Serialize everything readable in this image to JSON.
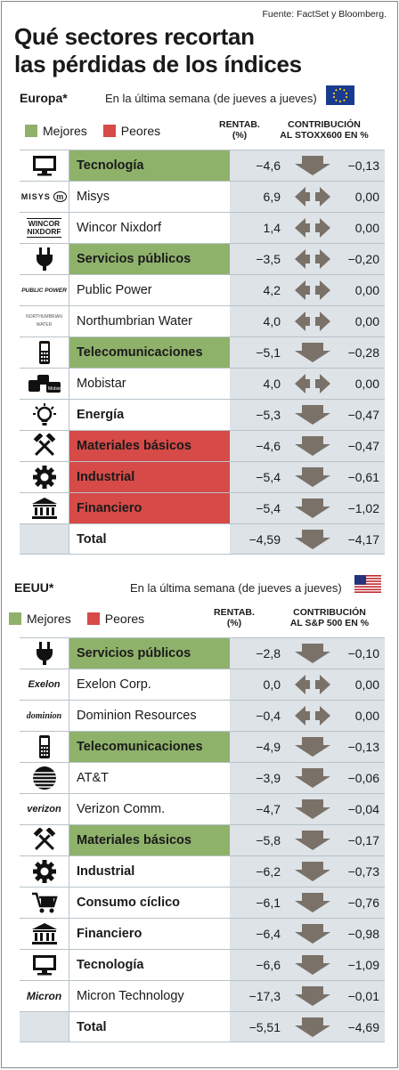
{
  "source": "Fuente: FactSet y Bloomberg.",
  "title_line1": "Qué sectores recortan",
  "title_line2": "las pérdidas de los índices",
  "legend": {
    "better": "Mejores",
    "worse": "Peores"
  },
  "colors": {
    "better": "#8fb26b",
    "worse": "#d64a47",
    "arrow": "#7a7168",
    "cell": "#dde3e7"
  },
  "europe": {
    "name": "Europa*",
    "subtitle": "En la última semana (de jueves a jueves)",
    "col_return_1": "RENTAB.",
    "col_return_2": "(%)",
    "col_contrib_1": "CONTRIBUCIÓN",
    "col_contrib_2": "AL STOXX600 EN %",
    "rows": [
      {
        "icon": "computer-monitor-icon",
        "label": "Tecnología",
        "value": "−4,6",
        "arrow": "down",
        "contrib": "−0,13",
        "bold": true,
        "hl": "g"
      },
      {
        "icon": "misys-logo",
        "logo_text": "MISYS",
        "label": "Misys",
        "value": "6,9",
        "arrow": "flat",
        "contrib": "0,00",
        "bold": false,
        "hl": ""
      },
      {
        "icon": "wincor-nixdorf-logo",
        "logo_text": "WINCOR NIXDORF",
        "label": "Wincor Nixdorf",
        "value": "1,4",
        "arrow": "flat",
        "contrib": "0,00",
        "bold": false,
        "hl": ""
      },
      {
        "icon": "power-plug-icon",
        "label": "Servicios públicos",
        "value": "−3,5",
        "arrow": "flat",
        "contrib": "−0,20",
        "bold": true,
        "hl": "g"
      },
      {
        "icon": "public-power-logo",
        "logo_text": "PUBLIC POWER",
        "label": "Public Power",
        "value": "4,2",
        "arrow": "flat",
        "contrib": "0,00",
        "bold": false,
        "hl": ""
      },
      {
        "icon": "northumbrian-water-logo",
        "logo_text": "NORTHUMBRIAN WATER",
        "label": "Northumbrian Water",
        "value": "4,0",
        "arrow": "flat",
        "contrib": "0,00",
        "bold": false,
        "hl": ""
      },
      {
        "icon": "mobile-phone-icon",
        "label": "Telecomunicaciones",
        "value": "−5,1",
        "arrow": "down",
        "contrib": "−0,28",
        "bold": true,
        "hl": "g"
      },
      {
        "icon": "mobistar-logo",
        "logo_text": "Mobistar",
        "label": "Mobistar",
        "value": "4,0",
        "arrow": "flat",
        "contrib": "0,00",
        "bold": false,
        "hl": ""
      },
      {
        "icon": "light-bulb-icon",
        "label": "Energía",
        "value": "−5,3",
        "arrow": "down",
        "contrib": "−0,47",
        "bold": true,
        "hl": ""
      },
      {
        "icon": "hammers-icon",
        "label": "Materiales básicos",
        "value": "−4,6",
        "arrow": "down",
        "contrib": "−0,47",
        "bold": true,
        "hl": "r"
      },
      {
        "icon": "gear-icon",
        "label": "Industrial",
        "value": "−5,4",
        "arrow": "down",
        "contrib": "−0,61",
        "bold": true,
        "hl": "r"
      },
      {
        "icon": "bank-building-icon",
        "label": "Financiero",
        "value": "−5,4",
        "arrow": "down",
        "contrib": "−1,02",
        "bold": true,
        "hl": "r"
      }
    ],
    "total": {
      "label": "Total",
      "value": "−4,59",
      "arrow": "down",
      "contrib": "−4,17"
    }
  },
  "us": {
    "name": "EEUU*",
    "subtitle": "En la última semana (de jueves a jueves)",
    "col_return_1": "RENTAB.",
    "col_return_2": "(%)",
    "col_contrib_1": "CONTRIBUCIÓN",
    "col_contrib_2": "AL S&P 500 EN %",
    "rows": [
      {
        "icon": "power-plug-icon",
        "label": "Servicios públicos",
        "value": "−2,8",
        "arrow": "down",
        "contrib": "−0,10",
        "bold": true,
        "hl": "g"
      },
      {
        "icon": "exelon-logo",
        "logo_text": "Exelon",
        "label": "Exelon Corp.",
        "value": "0,0",
        "arrow": "flat",
        "contrib": "0,00",
        "bold": false,
        "hl": ""
      },
      {
        "icon": "dominion-logo",
        "logo_text": "dominion",
        "label": "Dominion Resources",
        "value": "−0,4",
        "arrow": "flat",
        "contrib": "0,00",
        "bold": false,
        "hl": ""
      },
      {
        "icon": "mobile-phone-icon",
        "label": "Telecomunicaciones",
        "value": "−4,9",
        "arrow": "down",
        "contrib": "−0,13",
        "bold": true,
        "hl": "g"
      },
      {
        "icon": "att-globe-logo",
        "logo_text": "",
        "label": "AT&T",
        "value": "−3,9",
        "arrow": "down",
        "contrib": "−0,06",
        "bold": false,
        "hl": ""
      },
      {
        "icon": "verizon-logo",
        "logo_text": "verizon",
        "label": "Verizon Comm.",
        "value": "−4,7",
        "arrow": "down",
        "contrib": "−0,04",
        "bold": false,
        "hl": ""
      },
      {
        "icon": "hammers-icon",
        "label": "Materiales básicos",
        "value": "−5,8",
        "arrow": "down",
        "contrib": "−0,17",
        "bold": true,
        "hl": "g"
      },
      {
        "icon": "gear-icon",
        "label": "Industrial",
        "value": "−6,2",
        "arrow": "down",
        "contrib": "−0,73",
        "bold": true,
        "hl": ""
      },
      {
        "icon": "shopping-cart-icon",
        "label": "Consumo cíclico",
        "value": "−6,1",
        "arrow": "down",
        "contrib": "−0,76",
        "bold": true,
        "hl": ""
      },
      {
        "icon": "bank-building-icon",
        "label": "Financiero",
        "value": "−6,4",
        "arrow": "down",
        "contrib": "−0,98",
        "bold": true,
        "hl": ""
      },
      {
        "icon": "computer-monitor-icon",
        "label": "Tecnología",
        "value": "−6,6",
        "arrow": "down",
        "contrib": "−1,09",
        "bold": true,
        "hl": ""
      },
      {
        "icon": "micron-logo",
        "logo_text": "Micron",
        "label": "Micron Technology",
        "value": "−17,3",
        "arrow": "down",
        "contrib": "−0,01",
        "bold": false,
        "hl": ""
      }
    ],
    "total": {
      "label": "Total",
      "value": "−5,51",
      "arrow": "down",
      "contrib": "−4,69"
    }
  }
}
